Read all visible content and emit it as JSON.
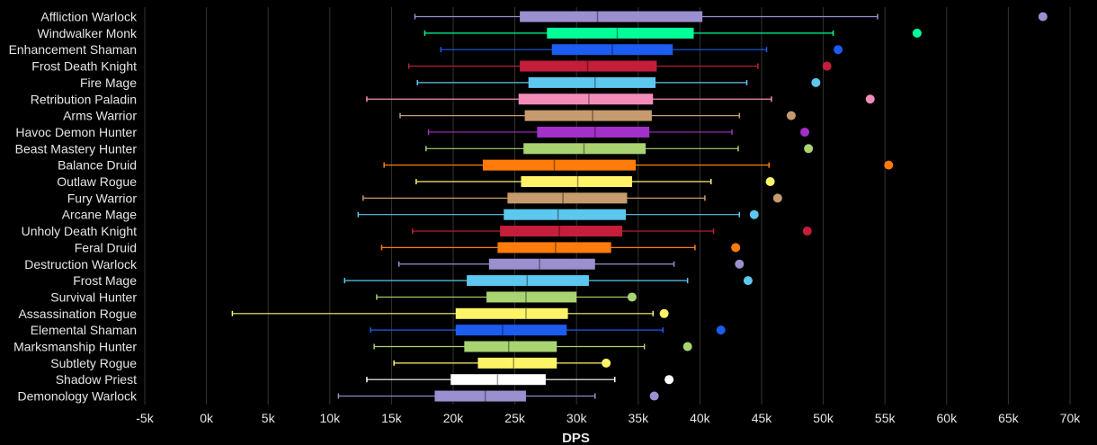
{
  "chart_data": {
    "type": "boxplot",
    "xlabel": "DPS",
    "xlim": [
      -5000,
      70000
    ],
    "xticks": [
      -5000,
      0,
      5000,
      10000,
      15000,
      20000,
      25000,
      30000,
      35000,
      40000,
      45000,
      50000,
      55000,
      60000,
      65000,
      70000
    ],
    "xtick_labels": [
      "-5k",
      "0k",
      "5k",
      "10k",
      "15k",
      "20k",
      "25k",
      "30k",
      "35k",
      "40k",
      "45k",
      "50k",
      "55k",
      "60k",
      "65k",
      "70k"
    ],
    "grid": true,
    "series": [
      {
        "name": "Affliction Warlock",
        "color": "#9b8fd0",
        "min": 16900,
        "q1": 25400,
        "median": 31700,
        "q3": 40200,
        "max": 54400,
        "outlier": 67800
      },
      {
        "name": "Windwalker Monk",
        "color": "#00ff98",
        "min": 17700,
        "q1": 27600,
        "median": 33300,
        "q3": 39500,
        "max": 50800,
        "outlier": 57600
      },
      {
        "name": "Enhancement Shaman",
        "color": "#1c5cf0",
        "min": 19000,
        "q1": 28000,
        "median": 32900,
        "q3": 37800,
        "max": 45400,
        "outlier": 51200
      },
      {
        "name": "Frost Death Knight",
        "color": "#c41e3a",
        "min": 16400,
        "q1": 25400,
        "median": 30900,
        "q3": 36500,
        "max": 44700,
        "outlier": 50300
      },
      {
        "name": "Fire Mage",
        "color": "#5ec7ee",
        "min": 17100,
        "q1": 26100,
        "median": 31500,
        "q3": 36400,
        "max": 43800,
        "outlier": 49400
      },
      {
        "name": "Retribution Paladin",
        "color": "#f48cba",
        "min": 13000,
        "q1": 25300,
        "median": 31000,
        "q3": 36200,
        "max": 45800,
        "outlier": 53800
      },
      {
        "name": "Arms Warrior",
        "color": "#c69b6d",
        "min": 15700,
        "q1": 25800,
        "median": 31300,
        "q3": 36100,
        "max": 43200,
        "outlier": 47400
      },
      {
        "name": "Havoc Demon Hunter",
        "color": "#a330c9",
        "min": 18000,
        "q1": 26800,
        "median": 31500,
        "q3": 35900,
        "max": 42600,
        "outlier": 48500
      },
      {
        "name": "Beast Mastery Hunter",
        "color": "#aad372",
        "min": 17800,
        "q1": 25700,
        "median": 30600,
        "q3": 35600,
        "max": 43100,
        "outlier": 48800
      },
      {
        "name": "Balance Druid",
        "color": "#ff7c0a",
        "min": 14400,
        "q1": 22400,
        "median": 28200,
        "q3": 34800,
        "max": 45600,
        "outlier": 55300
      },
      {
        "name": "Outlaw Rogue",
        "color": "#fff468",
        "min": 17000,
        "q1": 25500,
        "median": 30100,
        "q3": 34500,
        "max": 40900,
        "outlier": 45700
      },
      {
        "name": "Fury Warrior",
        "color": "#c69b6d",
        "min": 12700,
        "q1": 24400,
        "median": 28900,
        "q3": 34100,
        "max": 40400,
        "outlier": 46300
      },
      {
        "name": "Arcane Mage",
        "color": "#5ec7ee",
        "min": 12300,
        "q1": 24100,
        "median": 28500,
        "q3": 34000,
        "max": 43200,
        "outlier": 44400
      },
      {
        "name": "Unholy Death Knight",
        "color": "#c41e3a",
        "min": 16700,
        "q1": 23800,
        "median": 28600,
        "q3": 33700,
        "max": 41100,
        "outlier": 48700
      },
      {
        "name": "Feral Druid",
        "color": "#ff7c0a",
        "min": 14200,
        "q1": 23600,
        "median": 28300,
        "q3": 32800,
        "max": 39600,
        "outlier": 42900
      },
      {
        "name": "Destruction Warlock",
        "color": "#9b8fd0",
        "min": 15600,
        "q1": 22900,
        "median": 27000,
        "q3": 31500,
        "max": 37900,
        "outlier": 43200
      },
      {
        "name": "Frost Mage",
        "color": "#5ec7ee",
        "min": 11200,
        "q1": 21100,
        "median": 26000,
        "q3": 31000,
        "max": 39000,
        "outlier": 43900
      },
      {
        "name": "Survival Hunter",
        "color": "#aad372",
        "min": 13800,
        "q1": 22700,
        "median": 25900,
        "q3": 30000,
        "max": 34500,
        "outlier": 34500
      },
      {
        "name": "Assassination Rogue",
        "color": "#fff468",
        "min": 2100,
        "q1": 20200,
        "median": 25900,
        "q3": 29300,
        "max": 36200,
        "outlier": 37100
      },
      {
        "name": "Elemental Shaman",
        "color": "#1c5cf0",
        "min": 13300,
        "q1": 20200,
        "median": 24000,
        "q3": 29200,
        "max": 37000,
        "outlier": 41700
      },
      {
        "name": "Marksmanship Hunter",
        "color": "#aad372",
        "min": 13600,
        "q1": 20900,
        "median": 24500,
        "q3": 28400,
        "max": 35500,
        "outlier": 39000
      },
      {
        "name": "Subtlety Rogue",
        "color": "#fff468",
        "min": 15200,
        "q1": 22000,
        "median": 24900,
        "q3": 28400,
        "max": 32200,
        "outlier": 32400
      },
      {
        "name": "Shadow Priest",
        "color": "#ffffff",
        "min": 13000,
        "q1": 19800,
        "median": 23600,
        "q3": 27500,
        "max": 33100,
        "outlier": 37500
      },
      {
        "name": "Demonology Warlock",
        "color": "#9b8fd0",
        "min": 10700,
        "q1": 18500,
        "median": 22600,
        "q3": 25900,
        "max": 31500,
        "outlier": 36300
      }
    ]
  }
}
